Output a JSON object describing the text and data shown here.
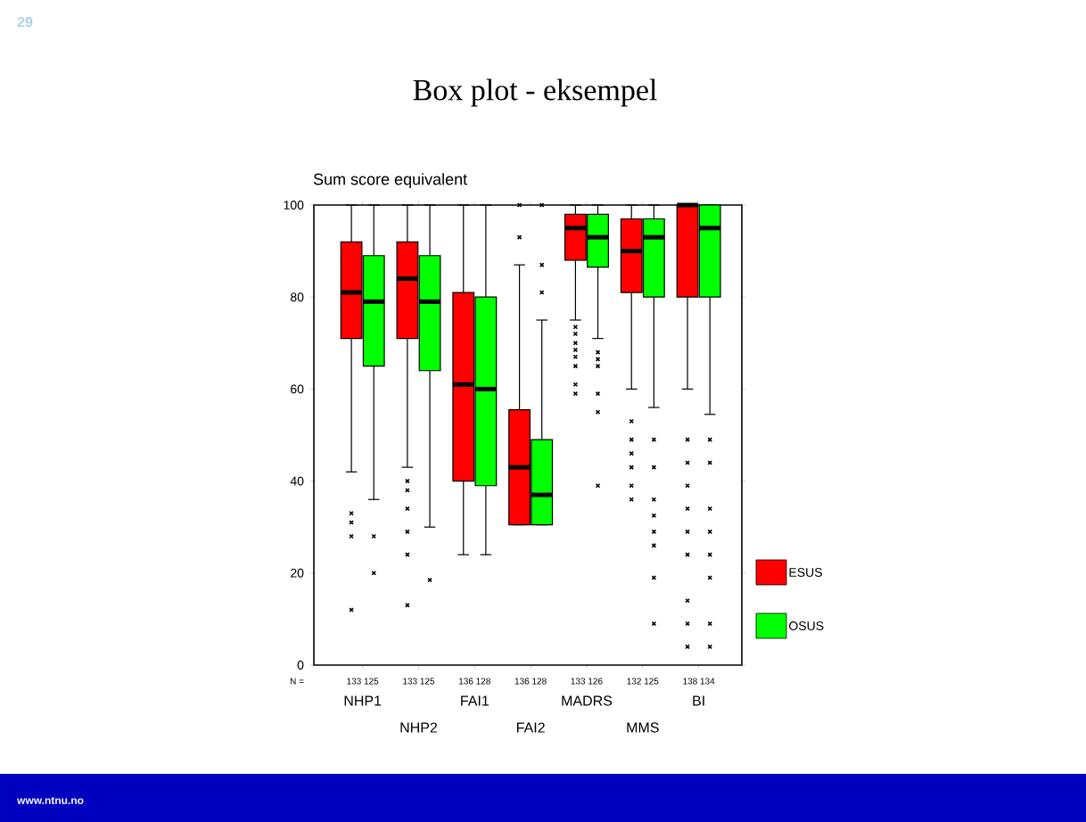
{
  "chart_data": {
    "type": "box",
    "title": "Box plot - eksempel",
    "ylabel": "Sum score equivalent",
    "categories": [
      "NHP1",
      "NHP2",
      "FAI1",
      "FAI2",
      "MADRS",
      "MMS",
      "BI"
    ],
    "ylim": [
      0,
      100
    ],
    "yticks": [
      0,
      20,
      40,
      60,
      80,
      100
    ],
    "legend": "right",
    "grid": false,
    "series": [
      {
        "name": "ESUS",
        "color": "#ff0000",
        "boxes": [
          {
            "low": 42,
            "q1": 71,
            "median": 81,
            "q3": 92,
            "high": 100,
            "outliers": [
              33,
              31,
              28,
              12
            ]
          },
          {
            "low": 43,
            "q1": 71,
            "median": 84,
            "q3": 92,
            "high": 100,
            "outliers": [
              40,
              38,
              34,
              29,
              24,
              13
            ]
          },
          {
            "low": 24,
            "q1": 40,
            "median": 61,
            "q3": 81,
            "high": 100
          },
          {
            "low": 30.5,
            "q1": 30.5,
            "median": 43,
            "q3": 55.5,
            "high": 87,
            "outliers": [
              100,
              93
            ]
          },
          {
            "low": 75,
            "q1": 88,
            "median": 95,
            "q3": 98,
            "high": 100,
            "outliers": [
              73.5,
              72,
              70,
              68.5,
              67,
              65,
              61,
              59
            ]
          },
          {
            "low": 60,
            "q1": 81,
            "median": 90,
            "q3": 97,
            "high": 100,
            "outliers": [
              53,
              49,
              46,
              43,
              39,
              36
            ]
          },
          {
            "low": 60,
            "q1": 80,
            "median": 100,
            "q3": 100,
            "high": 100,
            "outliers": [
              49,
              44,
              39,
              34,
              29,
              24,
              14,
              9,
              4
            ]
          }
        ]
      },
      {
        "name": "OSUS",
        "color": "#00ff00",
        "boxes": [
          {
            "low": 36,
            "q1": 65,
            "median": 79,
            "q3": 89,
            "high": 100,
            "outliers": [
              28,
              20
            ]
          },
          {
            "low": 30,
            "q1": 64,
            "median": 79,
            "q3": 89,
            "high": 100,
            "outliers": [
              18.5
            ]
          },
          {
            "low": 24,
            "q1": 39,
            "median": 60,
            "q3": 80,
            "high": 100
          },
          {
            "low": 30.5,
            "q1": 30.5,
            "median": 37,
            "q3": 49,
            "high": 75,
            "outliers": [
              100,
              87,
              81
            ]
          },
          {
            "low": 71,
            "q1": 86.5,
            "median": 93,
            "q3": 98,
            "high": 100,
            "outliers": [
              68,
              66.5,
              65,
              59,
              55,
              39
            ]
          },
          {
            "low": 56,
            "q1": 80,
            "median": 93,
            "q3": 97,
            "high": 100,
            "outliers": [
              49,
              43,
              36,
              32.5,
              29,
              26,
              19,
              9
            ]
          },
          {
            "low": 54.5,
            "q1": 80,
            "median": 95,
            "q3": 100,
            "high": 100,
            "outliers": [
              49,
              44,
              34,
              29,
              24,
              19,
              9,
              4
            ]
          }
        ]
      }
    ],
    "annotations": [
      "N =",
      "133 125",
      "133 125",
      "136 128",
      "136 128",
      "133 126",
      "132 125",
      "138 134",
      "29",
      "www.ntnu.no"
    ]
  }
}
